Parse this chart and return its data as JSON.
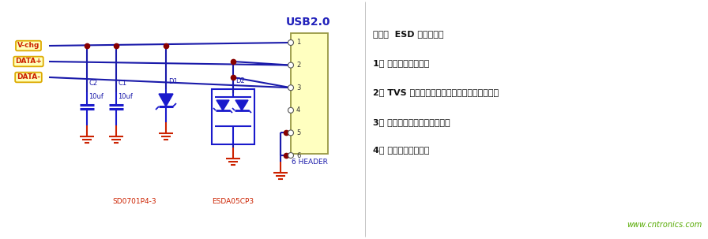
{
  "bg_color": "#ffffff",
  "wire_color": "#1a1aaa",
  "red_color": "#cc2200",
  "dot_color": "#880000",
  "green_color": "#55aa00",
  "yellow_fill": "#ffffbb",
  "yellow_border": "#ddaa00",
  "usb_fill": "#ffffc0",
  "usb_border": "#bbaa44",
  "blue_comp": "#1a1acc",
  "note_title": "备注：  ESD 选型原则：",
  "note_1": "1、 选择合适的封装；",
  "note_2": "2、 TVS 的击穿电压大于电路的最大工作电压；",
  "note_3": "3、 选择符合测试要求的功率；",
  "note_4": "4、 选择算位较小的。",
  "website": "www.cntronics.com",
  "usb_label": "USB2.0",
  "header_label": "6 HEADER",
  "label_vchg": "V-chg",
  "label_datap": "DATA+",
  "label_datam": "DATA-",
  "label_c2": "C2",
  "label_c2_val": "10uf",
  "label_c1": "C1",
  "label_c1_val": "10uf",
  "label_d1": "D1",
  "label_d2": "D2",
  "label_sd": "SD0701P4-3",
  "label_esda": "ESDA05CP3"
}
